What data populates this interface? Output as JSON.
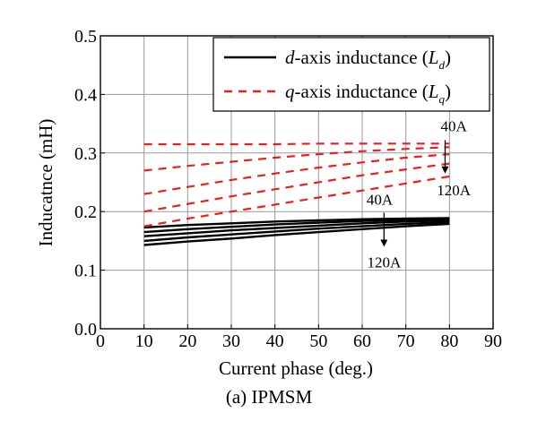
{
  "chart_data": {
    "type": "line",
    "title": "",
    "caption": "(a) IPMSM",
    "xlabel": "Current phase (deg.)",
    "ylabel": "Inducatnce (mH)",
    "xlim": [
      0,
      90
    ],
    "ylim": [
      0.0,
      0.5
    ],
    "xticks": [
      0,
      10,
      20,
      30,
      40,
      50,
      60,
      70,
      80,
      90
    ],
    "yticks": [
      0.0,
      0.1,
      0.2,
      0.3,
      0.4,
      0.5
    ],
    "ytick_labels": [
      "0.0",
      "0.1",
      "0.2",
      "0.3",
      "0.4",
      "0.5"
    ],
    "grid": true,
    "legend_position": "top-right",
    "legend": [
      {
        "style": "solid",
        "color": "#000000",
        "prefix": "d",
        "text": "-axis inductance (",
        "symbol": "L",
        "sub": "d",
        "suffix": ")"
      },
      {
        "style": "dashed",
        "color": "#e8201e",
        "prefix": "q",
        "text": "-axis inductance (",
        "symbol": "L",
        "sub": "q",
        "suffix": ")"
      }
    ],
    "x": [
      10,
      20,
      30,
      40,
      50,
      60,
      70,
      80
    ],
    "series": [
      {
        "name": "d-axis 40A",
        "group": "d",
        "values": [
          0.173,
          0.177,
          0.18,
          0.183,
          0.185,
          0.187,
          0.188,
          0.189
        ]
      },
      {
        "name": "d-axis 60A",
        "group": "d",
        "values": [
          0.165,
          0.17,
          0.174,
          0.178,
          0.181,
          0.184,
          0.186,
          0.187
        ]
      },
      {
        "name": "d-axis 80A",
        "group": "d",
        "values": [
          0.158,
          0.163,
          0.168,
          0.172,
          0.176,
          0.18,
          0.183,
          0.185
        ]
      },
      {
        "name": "d-axis 100A",
        "group": "d",
        "values": [
          0.15,
          0.156,
          0.161,
          0.166,
          0.171,
          0.175,
          0.179,
          0.182
        ]
      },
      {
        "name": "d-axis 120A",
        "group": "d",
        "values": [
          0.143,
          0.149,
          0.154,
          0.16,
          0.165,
          0.17,
          0.175,
          0.179
        ]
      },
      {
        "name": "q-axis 40A",
        "group": "q",
        "values": [
          0.315,
          0.315,
          0.315,
          0.315,
          0.316,
          0.316,
          0.316,
          0.316
        ]
      },
      {
        "name": "q-axis 60A",
        "group": "q",
        "values": [
          0.27,
          0.278,
          0.285,
          0.292,
          0.298,
          0.303,
          0.307,
          0.31
        ]
      },
      {
        "name": "q-axis 80A",
        "group": "q",
        "values": [
          0.23,
          0.242,
          0.254,
          0.265,
          0.275,
          0.284,
          0.292,
          0.298
        ]
      },
      {
        "name": "q-axis 100A",
        "group": "q",
        "values": [
          0.2,
          0.213,
          0.226,
          0.238,
          0.25,
          0.262,
          0.272,
          0.282
        ]
      },
      {
        "name": "q-axis 120A",
        "group": "q",
        "values": [
          0.175,
          0.188,
          0.2,
          0.212,
          0.224,
          0.236,
          0.248,
          0.26
        ]
      }
    ],
    "annotations": [
      {
        "text": "40A",
        "x": 81,
        "y": 0.337,
        "anchor": "middle",
        "arrow": {
          "x": 79,
          "y0": 0.322,
          "y1": 0.265
        }
      },
      {
        "text": "120A",
        "x": 81,
        "y": 0.228,
        "anchor": "middle"
      },
      {
        "text": "40A",
        "x": 64,
        "y": 0.212,
        "anchor": "middle",
        "arrow": {
          "x": 65,
          "y0": 0.198,
          "y1": 0.14
        }
      },
      {
        "text": "120A",
        "x": 65,
        "y": 0.105,
        "anchor": "middle"
      }
    ]
  }
}
